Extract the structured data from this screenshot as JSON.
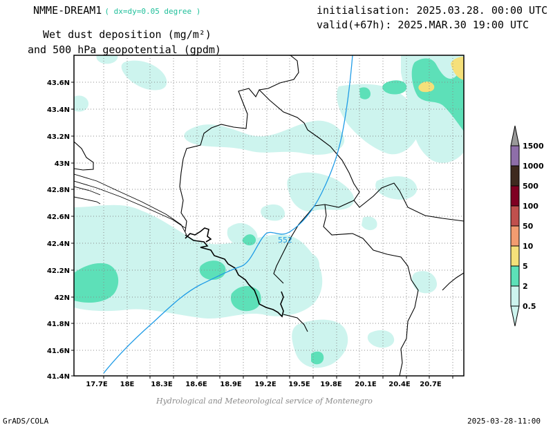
{
  "header": {
    "model": "NMME-DREAM1",
    "resolution": "( dx=dy=0.05 degree )",
    "init": "initialisation: 2025.03.28. 00:00 UTC",
    "valid": "valid(+67h): 2025.MAR.30 19:00 UTC",
    "variable_line1": "Wet dust deposition (mg/m²)",
    "variable_line2": "and 500 hPa geopotential (gpdm)"
  },
  "map": {
    "lon_labels": [
      "17.7E",
      "18E",
      "18.3E",
      "18.6E",
      "18.9E",
      "19.2E",
      "19.5E",
      "19.8E",
      "20.1E",
      "20.4E",
      "20.7E"
    ],
    "lat_labels": [
      "43.6N",
      "43.4N",
      "43.2N",
      "43N",
      "42.8N",
      "42.6N",
      "42.4N",
      "42.2N",
      "42N",
      "41.8N",
      "41.6N",
      "41.4N"
    ],
    "contour_label": "552",
    "contour_color": "#1e9be6"
  },
  "legend": {
    "levels": [
      "0.5",
      "2",
      "5",
      "10",
      "50",
      "100",
      "500",
      "1000",
      "1500"
    ],
    "colors": [
      "#cdf4ee",
      "#5de0b8",
      "#f5e07a",
      "#f29c70",
      "#c0504d",
      "#7f0022",
      "#3e2a1f",
      "#8e6ea9",
      "#999999"
    ]
  },
  "footer": {
    "credit": "Hydrological and Meteorological service of Montenegro",
    "software": "GrADS/COLA",
    "timestamp": "2025-03-28-11:00"
  }
}
